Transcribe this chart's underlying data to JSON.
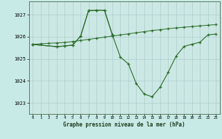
{
  "title": "Graphe pression niveau de la mer (hPa)",
  "bg_color": "#c8eae6",
  "plot_bg": "#cce8e4",
  "grid_color": "#aacccc",
  "line_color": "#2d6e2d",
  "x_ticks": [
    0,
    1,
    2,
    3,
    4,
    5,
    6,
    7,
    8,
    9,
    10,
    11,
    12,
    13,
    14,
    15,
    16,
    17,
    18,
    19,
    20,
    21,
    22,
    23
  ],
  "ylim": [
    1022.5,
    1027.6
  ],
  "yticks": [
    1023,
    1024,
    1025,
    1026,
    1027
  ],
  "series1_x": [
    0,
    1,
    2,
    3,
    4,
    5,
    6,
    7,
    8,
    9,
    10,
    11,
    12,
    13,
    14,
    15,
    16,
    17,
    18,
    19,
    20,
    21,
    22,
    23
  ],
  "series1_y": [
    1025.65,
    1025.68,
    1025.7,
    1025.72,
    1025.74,
    1025.78,
    1025.83,
    1025.88,
    1025.93,
    1025.98,
    1026.03,
    1026.08,
    1026.13,
    1026.18,
    1026.23,
    1026.28,
    1026.32,
    1026.36,
    1026.4,
    1026.43,
    1026.46,
    1026.49,
    1026.52,
    1026.55
  ],
  "series2_x": [
    0,
    3,
    4,
    5,
    6,
    7,
    8,
    9,
    10,
    11,
    12,
    13,
    14,
    15,
    16,
    17,
    18,
    19,
    20,
    21,
    22,
    23
  ],
  "series2_y": [
    1025.65,
    1025.55,
    1025.58,
    1025.62,
    1026.02,
    1027.18,
    1027.2,
    1027.2,
    1026.08,
    1025.08,
    1024.77,
    1023.88,
    1023.4,
    1023.28,
    1023.72,
    1024.38,
    1025.12,
    1025.56,
    1025.66,
    1025.75,
    1026.08,
    1026.12
  ],
  "series3_x": [
    0,
    3,
    4,
    5,
    6,
    7,
    8,
    9,
    10
  ],
  "series3_y": [
    1025.65,
    1025.55,
    1025.58,
    1025.62,
    1026.02,
    1027.18,
    1027.2,
    1027.2,
    1026.08
  ]
}
